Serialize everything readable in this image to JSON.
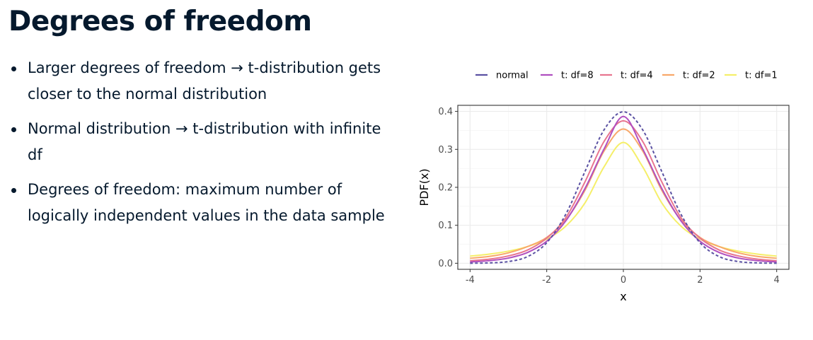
{
  "slide": {
    "title": "Degrees of freedom",
    "bullets": [
      {
        "before": "Larger degrees of freedom ",
        "arrow": "→",
        "after": " t-distribution gets closer to the normal distribution"
      },
      {
        "before": "Normal distribution ",
        "arrow": "→",
        "after": " t-distribution with infinite df"
      },
      {
        "before": "Degrees of freedom: maximum number of logically independent values in the data sample",
        "arrow": "",
        "after": ""
      }
    ]
  },
  "chart_data": {
    "type": "line",
    "title": "",
    "xlabel": "x",
    "ylabel": "PDF(x)",
    "xlim": [
      -4,
      4
    ],
    "ylim": [
      0,
      0.4
    ],
    "x_ticks": [
      -4,
      -2,
      0,
      2,
      4
    ],
    "y_ticks": [
      0.0,
      0.1,
      0.2,
      0.3,
      0.4
    ],
    "x_tick_labels": [
      "-4",
      "-2",
      "0",
      "2",
      "4"
    ],
    "y_tick_labels": [
      "0.0",
      "0.1",
      "0.2",
      "0.3",
      "0.4"
    ],
    "grid": true,
    "legend_position": "top",
    "x": [
      -4,
      -3.5,
      -3,
      -2.5,
      -2,
      -1.5,
      -1,
      -0.5,
      0,
      0.5,
      1,
      1.5,
      2,
      2.5,
      3,
      3.5,
      4
    ],
    "series": [
      {
        "name": "normal",
        "color": "#5b52a3",
        "dashed": true,
        "values": [
          0.0001,
          0.0009,
          0.0044,
          0.0175,
          0.054,
          0.1295,
          0.242,
          0.3521,
          0.3989,
          0.3521,
          0.242,
          0.1295,
          0.054,
          0.0175,
          0.0044,
          0.0009,
          0.0001
        ]
      },
      {
        "name": "t: df=8",
        "color": "#b04fc0",
        "dashed": false,
        "values": [
          0.0034,
          0.0067,
          0.0137,
          0.0284,
          0.0581,
          0.1119,
          0.1972,
          0.3018,
          0.3867,
          0.3018,
          0.1972,
          0.1119,
          0.0581,
          0.0284,
          0.0137,
          0.0067,
          0.0034
        ]
      },
      {
        "name": "t: df=4",
        "color": "#e8758f",
        "dashed": false,
        "values": [
          0.0067,
          0.0108,
          0.0193,
          0.0349,
          0.0663,
          0.1203,
          0.2147,
          0.3215,
          0.375,
          0.3215,
          0.2147,
          0.1203,
          0.0663,
          0.0349,
          0.0193,
          0.0108,
          0.0067
        ]
      },
      {
        "name": "t: df=2",
        "color": "#f8a86a",
        "dashed": false,
        "values": [
          0.0131,
          0.0179,
          0.0274,
          0.0439,
          0.068,
          0.114,
          0.1925,
          0.2963,
          0.3536,
          0.2963,
          0.1925,
          0.114,
          0.068,
          0.0439,
          0.0274,
          0.0179,
          0.0131
        ]
      },
      {
        "name": "t: df=1",
        "color": "#f5ef6a",
        "dashed": false,
        "values": [
          0.0187,
          0.024,
          0.0318,
          0.0439,
          0.0637,
          0.0979,
          0.1592,
          0.2546,
          0.3183,
          0.2546,
          0.1592,
          0.0979,
          0.0637,
          0.0439,
          0.0318,
          0.024,
          0.0187
        ]
      }
    ]
  }
}
